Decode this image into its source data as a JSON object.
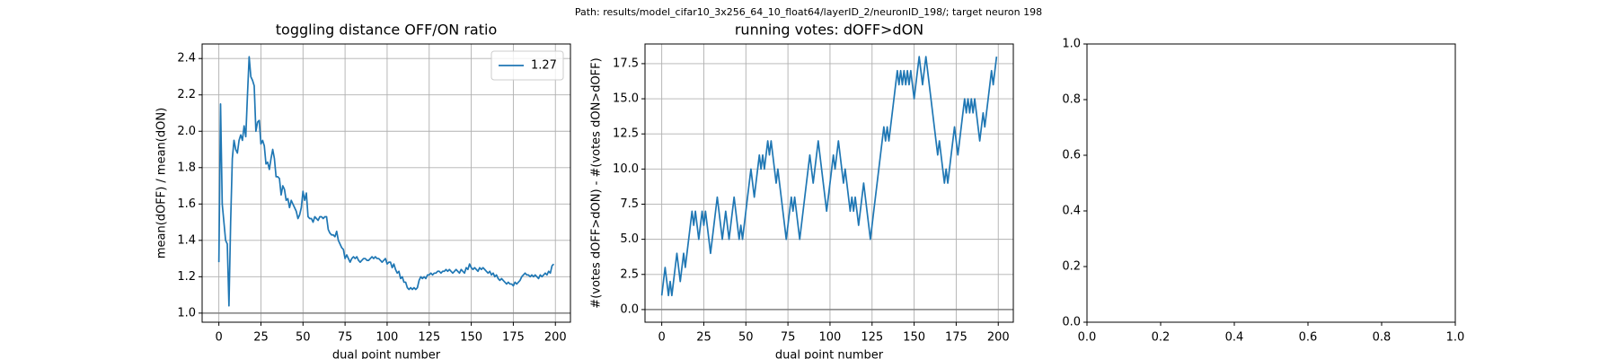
{
  "title": "Path: results/model_cifar10_3x256_64_10_float64/layerID_2/neuronID_198/; target neuron 198",
  "chart_data": [
    {
      "type": "line",
      "title": "toggling distance OFF/ON ratio",
      "xlabel": "dual point number",
      "ylabel": "mean(dOFF) / mean(dON)",
      "x": [
        0,
        1,
        2,
        3,
        4,
        5,
        6,
        7,
        8,
        9,
        10,
        11,
        12,
        13,
        14,
        15,
        16,
        17,
        18,
        19,
        20,
        21,
        22,
        23,
        24,
        25,
        26,
        27,
        28,
        29,
        30,
        31,
        32,
        33,
        34,
        35,
        36,
        37,
        38,
        39,
        40,
        41,
        42,
        43,
        44,
        45,
        46,
        47,
        48,
        49,
        50,
        51,
        52,
        53,
        54,
        55,
        56,
        57,
        58,
        59,
        60,
        61,
        62,
        63,
        64,
        65,
        66,
        67,
        68,
        69,
        70,
        71,
        72,
        73,
        74,
        75,
        76,
        77,
        78,
        79,
        80,
        81,
        82,
        83,
        84,
        85,
        86,
        87,
        88,
        89,
        90,
        91,
        92,
        93,
        94,
        95,
        96,
        97,
        98,
        99,
        100,
        101,
        102,
        103,
        104,
        105,
        106,
        107,
        108,
        109,
        110,
        111,
        112,
        113,
        114,
        115,
        116,
        117,
        118,
        119,
        120,
        121,
        122,
        123,
        124,
        125,
        126,
        127,
        128,
        129,
        130,
        131,
        132,
        133,
        134,
        135,
        136,
        137,
        138,
        139,
        140,
        141,
        142,
        143,
        144,
        145,
        146,
        147,
        148,
        149,
        150,
        151,
        152,
        153,
        154,
        155,
        156,
        157,
        158,
        159,
        160,
        161,
        162,
        163,
        164,
        165,
        166,
        167,
        168,
        169,
        170,
        171,
        172,
        173,
        174,
        175,
        176,
        177,
        178,
        179,
        180,
        181,
        182,
        183,
        184,
        185,
        186,
        187,
        188,
        189,
        190,
        191,
        192,
        193,
        194,
        195,
        196,
        197,
        198,
        199
      ],
      "series": [
        {
          "name": "1.27",
          "color": "#1f77b4",
          "values": [
            1.28,
            2.15,
            1.6,
            1.5,
            1.4,
            1.38,
            1.04,
            1.5,
            1.85,
            1.95,
            1.9,
            1.88,
            1.95,
            1.98,
            1.95,
            2.03,
            1.97,
            2.2,
            2.41,
            2.3,
            2.28,
            2.25,
            2.0,
            2.05,
            2.06,
            1.93,
            1.95,
            1.92,
            1.82,
            1.83,
            1.79,
            1.85,
            1.9,
            1.85,
            1.75,
            1.75,
            1.74,
            1.65,
            1.7,
            1.68,
            1.62,
            1.63,
            1.58,
            1.62,
            1.6,
            1.58,
            1.56,
            1.52,
            1.54,
            1.58,
            1.67,
            1.62,
            1.66,
            1.53,
            1.52,
            1.52,
            1.5,
            1.53,
            1.52,
            1.51,
            1.53,
            1.53,
            1.52,
            1.53,
            1.53,
            1.46,
            1.44,
            1.43,
            1.43,
            1.42,
            1.45,
            1.4,
            1.38,
            1.36,
            1.35,
            1.3,
            1.32,
            1.3,
            1.28,
            1.3,
            1.31,
            1.3,
            1.31,
            1.29,
            1.28,
            1.29,
            1.3,
            1.3,
            1.29,
            1.29,
            1.3,
            1.31,
            1.3,
            1.31,
            1.3,
            1.3,
            1.29,
            1.28,
            1.29,
            1.3,
            1.27,
            1.28,
            1.28,
            1.25,
            1.27,
            1.24,
            1.22,
            1.23,
            1.19,
            1.2,
            1.17,
            1.17,
            1.14,
            1.13,
            1.14,
            1.13,
            1.14,
            1.13,
            1.14,
            1.18,
            1.2,
            1.19,
            1.2,
            1.19,
            1.21,
            1.21,
            1.22,
            1.21,
            1.22,
            1.22,
            1.23,
            1.23,
            1.22,
            1.23,
            1.23,
            1.24,
            1.23,
            1.24,
            1.23,
            1.22,
            1.23,
            1.24,
            1.23,
            1.22,
            1.24,
            1.23,
            1.22,
            1.25,
            1.24,
            1.27,
            1.25,
            1.24,
            1.25,
            1.24,
            1.23,
            1.25,
            1.24,
            1.25,
            1.24,
            1.23,
            1.22,
            1.23,
            1.21,
            1.22,
            1.2,
            1.21,
            1.19,
            1.18,
            1.19,
            1.18,
            1.17,
            1.16,
            1.17,
            1.16,
            1.16,
            1.15,
            1.17,
            1.16,
            1.17,
            1.18,
            1.2,
            1.21,
            1.22,
            1.21,
            1.21,
            1.2,
            1.21,
            1.2,
            1.21,
            1.2,
            1.19,
            1.21,
            1.2,
            1.21,
            1.22,
            1.21,
            1.23,
            1.22,
            1.26,
            1.27
          ]
        }
      ],
      "hline": 1,
      "hline_color": "#808080",
      "legend": "upper right",
      "grid": true,
      "xlim": [
        -9.95,
        208.95
      ],
      "xticks": [
        0,
        25,
        50,
        75,
        100,
        125,
        150,
        175,
        200
      ],
      "ylim": [
        0.95,
        2.48
      ],
      "yticks": [
        {
          "value": 1,
          "label": "1.0"
        },
        1.2,
        1.4,
        1.6,
        1.8,
        {
          "value": 2,
          "label": "2.0"
        },
        2.2,
        2.4
      ]
    },
    {
      "type": "line",
      "title": "running votes: dOFF>dON",
      "xlabel": "dual point number",
      "ylabel": "#(votes dOFF>dON) - #(votes dON>dOFF)",
      "x": [
        0,
        1,
        2,
        3,
        4,
        5,
        6,
        7,
        8,
        9,
        10,
        11,
        12,
        13,
        14,
        15,
        16,
        17,
        18,
        19,
        20,
        21,
        22,
        23,
        24,
        25,
        26,
        27,
        28,
        29,
        30,
        31,
        32,
        33,
        34,
        35,
        36,
        37,
        38,
        39,
        40,
        41,
        42,
        43,
        44,
        45,
        46,
        47,
        48,
        49,
        50,
        51,
        52,
        53,
        54,
        55,
        56,
        57,
        58,
        59,
        60,
        61,
        62,
        63,
        64,
        65,
        66,
        67,
        68,
        69,
        70,
        71,
        72,
        73,
        74,
        75,
        76,
        77,
        78,
        79,
        80,
        81,
        82,
        83,
        84,
        85,
        86,
        87,
        88,
        89,
        90,
        91,
        92,
        93,
        94,
        95,
        96,
        97,
        98,
        99,
        100,
        101,
        102,
        103,
        104,
        105,
        106,
        107,
        108,
        109,
        110,
        111,
        112,
        113,
        114,
        115,
        116,
        117,
        118,
        119,
        120,
        121,
        122,
        123,
        124,
        125,
        126,
        127,
        128,
        129,
        130,
        131,
        132,
        133,
        134,
        135,
        136,
        137,
        138,
        139,
        140,
        141,
        142,
        143,
        144,
        145,
        146,
        147,
        148,
        149,
        150,
        151,
        152,
        153,
        154,
        155,
        156,
        157,
        158,
        159,
        160,
        161,
        162,
        163,
        164,
        165,
        166,
        167,
        168,
        169,
        170,
        171,
        172,
        173,
        174,
        175,
        176,
        177,
        178,
        179,
        180,
        181,
        182,
        183,
        184,
        185,
        186,
        187,
        188,
        189,
        190,
        191,
        192,
        193,
        194,
        195,
        196,
        197,
        198,
        199
      ],
      "series": [
        {
          "color": "#1f77b4",
          "values": [
            1,
            2,
            3,
            2,
            1,
            2,
            1,
            2,
            3,
            4,
            3,
            2,
            3,
            4,
            3,
            4,
            5,
            6,
            7,
            6,
            7,
            6,
            5,
            6,
            7,
            6,
            7,
            6,
            5,
            4,
            5,
            6,
            7,
            8,
            7,
            6,
            5,
            6,
            7,
            6,
            5,
            6,
            7,
            8,
            7,
            6,
            5,
            6,
            5,
            6,
            7,
            8,
            9,
            10,
            9,
            8,
            9,
            10,
            11,
            10,
            11,
            10,
            11,
            12,
            11,
            12,
            11,
            10,
            9,
            10,
            9,
            8,
            7,
            6,
            5,
            6,
            7,
            8,
            7,
            8,
            7,
            6,
            5,
            6,
            7,
            8,
            9,
            10,
            11,
            10,
            9,
            10,
            11,
            12,
            11,
            10,
            9,
            8,
            7,
            8,
            9,
            10,
            11,
            10,
            11,
            12,
            11,
            10,
            9,
            10,
            9,
            8,
            7,
            8,
            7,
            8,
            7,
            6,
            7,
            8,
            9,
            8,
            7,
            6,
            5,
            6,
            7,
            8,
            9,
            10,
            11,
            12,
            13,
            12,
            13,
            12,
            13,
            14,
            15,
            16,
            17,
            16,
            17,
            16,
            17,
            16,
            17,
            16,
            17,
            16,
            15,
            16,
            17,
            18,
            17,
            16,
            17,
            18,
            17,
            16,
            15,
            14,
            13,
            12,
            11,
            12,
            11,
            10,
            9,
            10,
            9,
            10,
            11,
            12,
            13,
            12,
            11,
            12,
            13,
            14,
            15,
            14,
            15,
            14,
            15,
            14,
            15,
            14,
            13,
            12,
            13,
            14,
            13,
            14,
            15,
            16,
            17,
            16,
            17,
            18
          ]
        }
      ],
      "hline": 0,
      "hline_color": "#808080",
      "grid": true,
      "xlim": [
        -9.95,
        208.95
      ],
      "xticks": [
        0,
        25,
        50,
        75,
        100,
        125,
        150,
        175,
        200
      ],
      "ylim": [
        -0.9,
        18.9
      ],
      "yticks": [
        {
          "value": 0,
          "label": "0.0"
        },
        2.5,
        {
          "value": 5,
          "label": "5.0"
        },
        7.5,
        {
          "value": 10,
          "label": "10.0"
        },
        12.5,
        {
          "value": 15,
          "label": "15.0"
        },
        17.5
      ]
    },
    {
      "type": "line",
      "xlim": [
        0,
        1
      ],
      "ylim": [
        0,
        1
      ],
      "xticks": [
        {
          "value": 0,
          "label": "0.0"
        },
        0.2,
        0.4,
        0.6,
        0.8,
        {
          "value": 1,
          "label": "1.0"
        }
      ],
      "yticks": [
        {
          "value": 0,
          "label": "0.0"
        },
        0.2,
        0.4,
        0.6,
        0.8,
        {
          "value": 1,
          "label": "1.0"
        }
      ]
    }
  ]
}
